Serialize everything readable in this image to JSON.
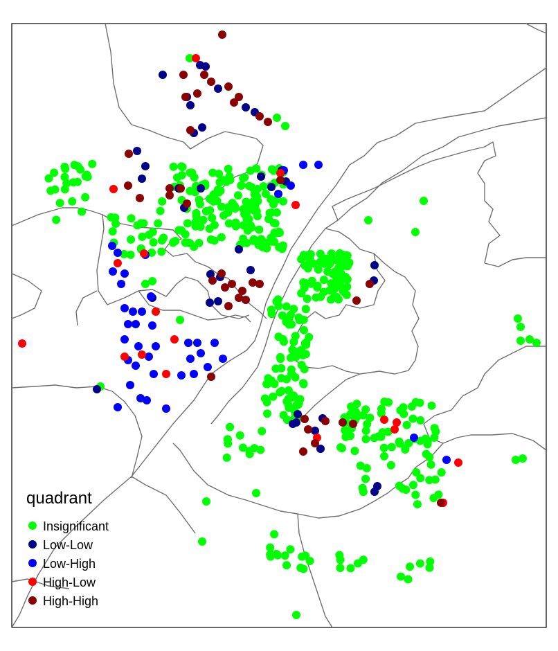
{
  "legend": {
    "title": "quadrant",
    "items": [
      {
        "key": "insignificant",
        "label": "Insignificant",
        "color": "#00ff00"
      },
      {
        "key": "low_low",
        "label": "Low-Low",
        "color": "#00008b"
      },
      {
        "key": "low_high",
        "label": "Low-High",
        "color": "#0000ff"
      },
      {
        "key": "high_low",
        "label": "High-Low",
        "color": "#ff0000"
      },
      {
        "key": "high_high",
        "label": "High-High",
        "color": "#8b0000"
      }
    ]
  },
  "map": {
    "frame": true,
    "point_color_key": "quadrant"
  }
}
